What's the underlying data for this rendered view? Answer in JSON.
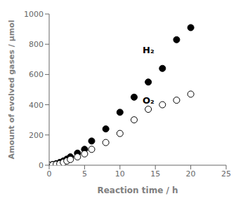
{
  "chart_data": {
    "type": "scatter",
    "xlabel": "Reaction time / h",
    "ylabel": "Amount of evolved gases / μmol",
    "xlim": [
      0,
      25
    ],
    "ylim": [
      0,
      1000
    ],
    "xticks": [
      0,
      5,
      10,
      15,
      20,
      25
    ],
    "yticks": [
      0,
      200,
      400,
      600,
      800,
      1000
    ],
    "grid": false,
    "x": [
      0,
      0.5,
      1,
      1.5,
      2,
      2.5,
      3,
      4,
      5,
      6,
      8,
      10,
      12,
      14,
      16,
      18,
      20
    ],
    "series": [
      {
        "name": "H₂",
        "color": "#000000",
        "marker": "filled_circle",
        "values": [
          0,
          5,
          10,
          18,
          28,
          40,
          55,
          80,
          105,
          160,
          240,
          350,
          450,
          550,
          640,
          830,
          910
        ]
      },
      {
        "name": "O₂",
        "color": "#000000",
        "marker": "open_circle",
        "values": [
          0,
          3,
          6,
          10,
          18,
          28,
          38,
          55,
          75,
          105,
          150,
          210,
          300,
          370,
          400,
          430,
          470
        ]
      }
    ],
    "annotations": [
      {
        "text": "H₂",
        "x": 13.2,
        "y": 760
      },
      {
        "text": "O₂",
        "x": 13.2,
        "y": 430
      }
    ]
  }
}
